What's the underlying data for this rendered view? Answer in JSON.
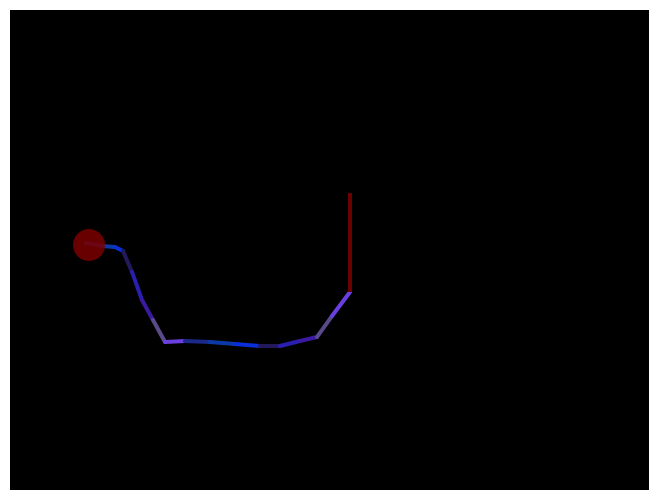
{
  "scene": {
    "background_color": "#000000",
    "page_background": "#ffffff",
    "stick": {
      "color": "#6b0000"
    },
    "target": {
      "color": "#7a0000"
    },
    "trail": {
      "colors": [
        "#1b2a8a",
        "#0b3aa8",
        "#0a2fd8",
        "#231a5e",
        "#2a1fb0",
        "#3b1aa0",
        "#5a4a8a",
        "#6a3fe0"
      ]
    }
  }
}
